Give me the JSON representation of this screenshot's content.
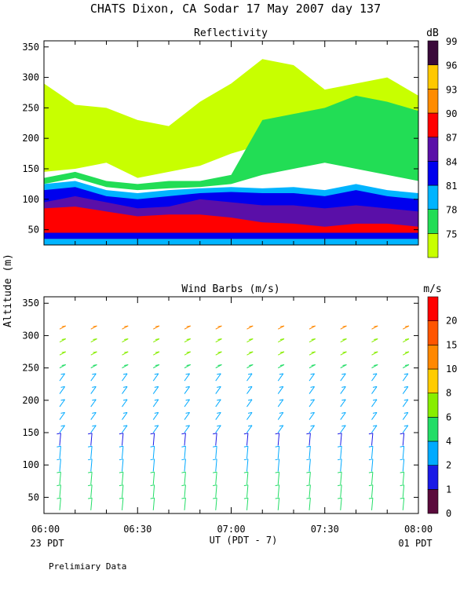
{
  "page": {
    "title": "CHATS Dixon, CA  Sodar  17 May 2007  day 137",
    "y_axis_label": "Altitude (m)",
    "x_axis_label": "UT  (PDT - 7)",
    "x_start_note": "23 PDT",
    "x_end_note": "01 PDT",
    "footer_note": "Prelimiary Data"
  },
  "chart_data": [
    {
      "type": "heatmap",
      "title": "Reflectivity",
      "colorbar_label": "dB",
      "x_ticks": [
        "06:00",
        "06:30",
        "07:00",
        "07:30",
        "08:00"
      ],
      "x_range": [
        "06:00",
        "08:00"
      ],
      "y_ticks": [
        50,
        100,
        150,
        200,
        250,
        300,
        350
      ],
      "ylim": [
        25,
        360
      ],
      "colorbar": [
        {
          "label": "75",
          "color": "#c8ff00"
        },
        {
          "label": "78",
          "color": "#22dd55"
        },
        {
          "label": "81",
          "color": "#00b4ff"
        },
        {
          "label": "84",
          "color": "#0000ee"
        },
        {
          "label": "87",
          "color": "#5a0fa8"
        },
        {
          "label": "90",
          "color": "#ff0000"
        },
        {
          "label": "93",
          "color": "#ff8c00"
        },
        {
          "label": "96",
          "color": "#ffc800"
        },
        {
          "label": "99",
          "color": "#3a0a3a"
        }
      ],
      "columns_min": [
        0,
        10,
        20,
        30,
        40,
        50,
        60,
        70,
        80,
        90,
        100,
        110,
        120
      ],
      "layers_approx": [
        {
          "level": "75",
          "top": [
            290,
            255,
            250,
            230,
            220,
            260,
            290,
            330,
            320,
            280,
            290,
            300,
            270
          ],
          "bottom": [
            145,
            150,
            160,
            135,
            145,
            155,
            175,
            190,
            185,
            180,
            175,
            165,
            150
          ]
        },
        {
          "level": "78",
          "top": [
            135,
            145,
            130,
            125,
            130,
            130,
            140,
            230,
            240,
            250,
            270,
            260,
            245
          ],
          "bottom": [
            125,
            135,
            120,
            115,
            118,
            120,
            125,
            140,
            150,
            160,
            150,
            140,
            130
          ]
        },
        {
          "level": "81",
          "top": [
            125,
            130,
            115,
            110,
            115,
            118,
            120,
            118,
            120,
            115,
            125,
            115,
            110
          ]
        },
        {
          "level": "84",
          "top": [
            115,
            120,
            105,
            100,
            105,
            110,
            112,
            110,
            110,
            105,
            115,
            105,
            100
          ]
        },
        {
          "level": "87",
          "top": [
            95,
            105,
            95,
            85,
            88,
            100,
            95,
            90,
            90,
            85,
            90,
            85,
            80
          ]
        },
        {
          "level": "90",
          "top": [
            85,
            88,
            80,
            72,
            75,
            75,
            70,
            62,
            60,
            55,
            60,
            60,
            55
          ]
        }
      ]
    },
    {
      "type": "scatter",
      "title": "Wind Barbs (m/s)",
      "colorbar_label": "m/s",
      "x_ticks": [
        "06:00",
        "06:30",
        "07:00",
        "07:30",
        "08:00"
      ],
      "x_range": [
        "06:00",
        "08:00"
      ],
      "y_ticks": [
        50,
        100,
        150,
        200,
        250,
        300,
        350
      ],
      "ylim": [
        25,
        360
      ],
      "colorbar": [
        {
          "label": "0",
          "color": "#5a0a3c"
        },
        {
          "label": "1",
          "color": "#1a1ae6"
        },
        {
          "label": "2",
          "color": "#00aaff"
        },
        {
          "label": "4",
          "color": "#22dd66"
        },
        {
          "label": "6",
          "color": "#88ee00"
        },
        {
          "label": "8",
          "color": "#ffcc00"
        },
        {
          "label": "10",
          "color": "#ff8800"
        },
        {
          "label": "15",
          "color": "#ff5500"
        },
        {
          "label": "20",
          "color": "#ff0000"
        }
      ],
      "barb_times_min": [
        0,
        10,
        20,
        30,
        40,
        50,
        60,
        70,
        80,
        90,
        100,
        110
      ],
      "barb_altitudes_m": [
        30,
        50,
        70,
        90,
        110,
        130,
        150,
        170,
        190,
        210,
        230,
        250,
        270,
        290,
        310
      ],
      "speed_color_profile_approx": [
        {
          "alt": 30,
          "color": "#22dd66"
        },
        {
          "alt": 60,
          "color": "#22dd66"
        },
        {
          "alt": 90,
          "color": "#00aaff"
        },
        {
          "alt": 120,
          "color": "#1a1ae6"
        },
        {
          "alt": 150,
          "color": "#00aaff"
        },
        {
          "alt": 200,
          "color": "#00aaff"
        },
        {
          "alt": 240,
          "color": "#22dd66"
        },
        {
          "alt": 270,
          "color": "#88ee00"
        },
        {
          "alt": 300,
          "color": "#ff8800"
        }
      ]
    }
  ]
}
